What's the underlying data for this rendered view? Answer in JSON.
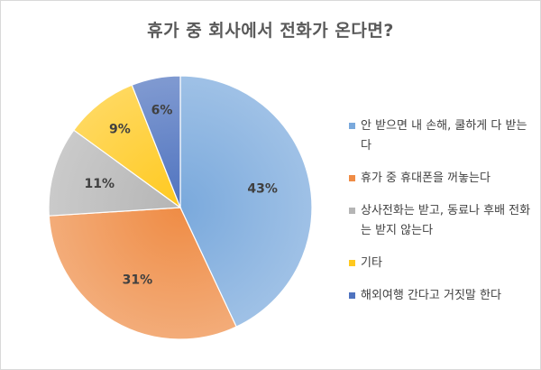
{
  "chart_data": {
    "type": "pie",
    "title": "휴가 중 회사에서 전화가 온다면?",
    "categories": [
      "안 받으면 내 손해, 쿨하게 다 받는다",
      "휴가 중 휴대폰을 꺼놓는다",
      "상사전화는 받고, 동료나 후배 전화는 받지 않는다",
      "기타",
      "해외여행 간다고 거짓말 한다"
    ],
    "values": [
      43,
      31,
      11,
      9,
      6
    ],
    "labels": [
      "43%",
      "31%",
      "11%",
      "9%",
      "6%"
    ],
    "colors": [
      "#7aa9dc",
      "#ef8c45",
      "#b5b5b5",
      "#ffc91f",
      "#4f73bf"
    ],
    "legend_position": "right"
  }
}
